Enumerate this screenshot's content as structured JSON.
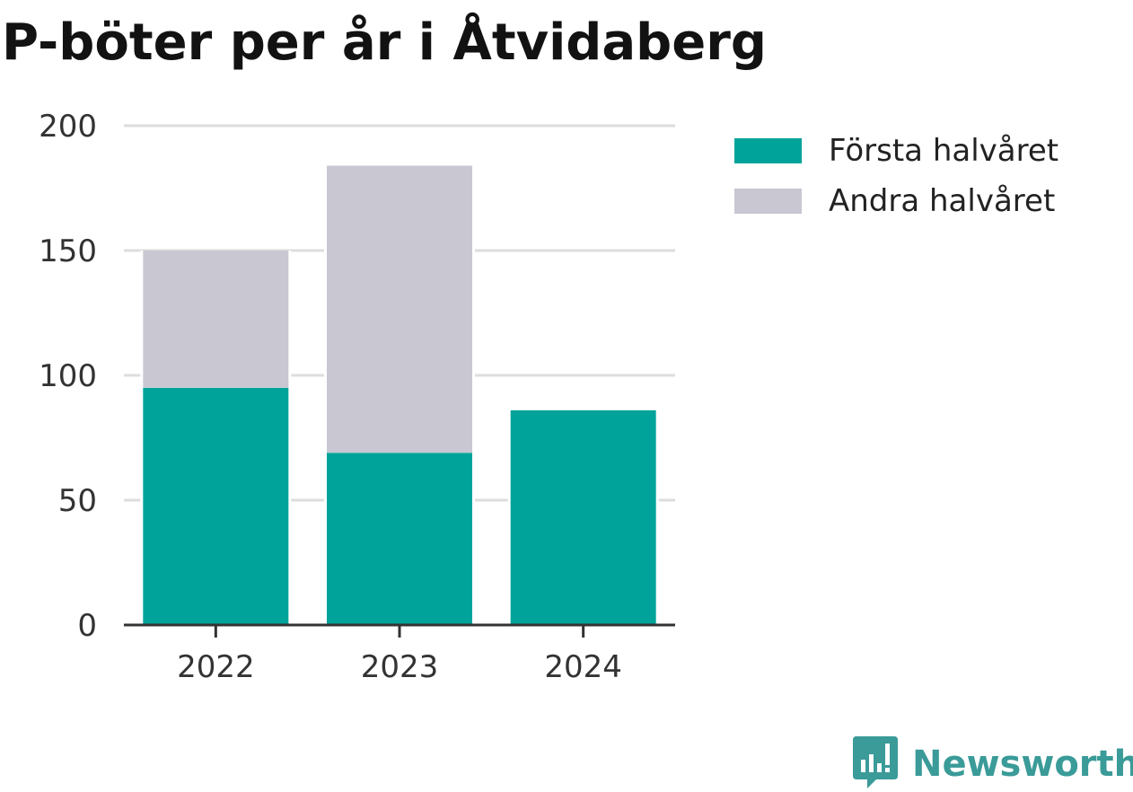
{
  "title": "P-böter per år i Åtvidaberg",
  "colors": {
    "first_half": "#00a39a",
    "second_half": "#c8c7d2",
    "grid": "#dddddd",
    "axis": "#333333",
    "logo": "#3a9b98"
  },
  "legend": {
    "items": [
      {
        "label": "Första halvåret",
        "color": "#00a39a"
      },
      {
        "label": "Andra halvåret",
        "color": "#c8c7d2"
      }
    ],
    "placement": "top-right"
  },
  "logo": {
    "text": "Newsworthy",
    "icon": "bar-chart-speech-bubble-icon"
  },
  "chart_data": {
    "type": "bar",
    "stacked": true,
    "title": "P-böter per år i Åtvidaberg",
    "xlabel": "",
    "ylabel": "",
    "categories": [
      "2022",
      "2023",
      "2024"
    ],
    "series": [
      {
        "name": "Första halvåret",
        "values": [
          95,
          69,
          86
        ]
      },
      {
        "name": "Andra halvåret",
        "values": [
          55,
          115,
          0
        ]
      }
    ],
    "ylim": [
      0,
      200
    ],
    "yticks": [
      "0",
      "50",
      "100",
      "150",
      "200"
    ],
    "grid": true
  }
}
